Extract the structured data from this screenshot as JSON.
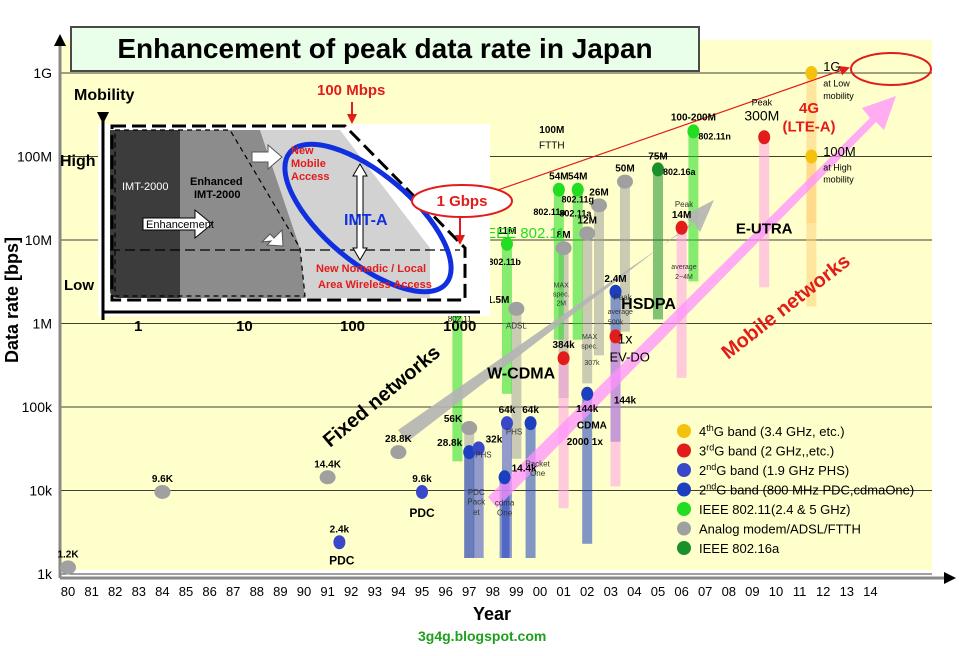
{
  "chart_data": {
    "type": "scatter",
    "title": "Enhancement of peak data rate in Japan",
    "xlabel": "Year",
    "ylabel": "Data rate [bps]",
    "x_ticks": [
      "80",
      "81",
      "82",
      "83",
      "84",
      "85",
      "86",
      "87",
      "88",
      "89",
      "90",
      "91",
      "92",
      "93",
      "94",
      "95",
      "96",
      "97",
      "98",
      "99",
      "00",
      "01",
      "02",
      "03",
      "04",
      "05",
      "06",
      "07",
      "08",
      "09",
      "10",
      "11",
      "12",
      "13",
      "14"
    ],
    "y_ticks": [
      "1k",
      "10k",
      "100k",
      "1M",
      "10M",
      "100M",
      "1G"
    ],
    "y_log10_range": [
      3,
      9
    ],
    "colors": {
      "4g": "#f4c20d",
      "3g": "#e21b1b",
      "2g_19": "#3848c8",
      "2g_800": "#1c3fbf",
      "wlan": "#22dd22",
      "fixed": "#a0a0a0",
      "wimax": "#1a8f2a",
      "plot_bg": "#ffffcc",
      "title_bg": "#eaffea",
      "arrow_fixed": "#b4b4b4",
      "arrow_mobile": "#ff90ff",
      "callout": "#e21b1b"
    },
    "points": [
      {
        "x": 1980,
        "rate": 1200,
        "cat": "fixed",
        "label": "1.2K",
        "lpos": "above"
      },
      {
        "x": 1984,
        "rate": 9600,
        "cat": "fixed",
        "label": "9.6K",
        "lpos": "above"
      },
      {
        "x": 1991,
        "rate": 14400,
        "cat": "fixed",
        "label": "14.4K",
        "lpos": "above"
      },
      {
        "x": 1994,
        "rate": 28800,
        "cat": "fixed",
        "label": "28.8K",
        "lpos": "above"
      },
      {
        "x": 1997,
        "rate": 56000,
        "cat": "fixed",
        "label": "56K",
        "lpos": "left"
      },
      {
        "x": 1999,
        "rate": 1500000,
        "cat": "fixed",
        "label": "1.5M",
        "lpos": "left"
      },
      {
        "x": 2001,
        "rate": 8000000,
        "cat": "fixed",
        "label": "8M",
        "lpos": "above"
      },
      {
        "x": 2002,
        "rate": 12000000,
        "cat": "fixed",
        "label": "12M",
        "lpos": "above"
      },
      {
        "x": 2002.5,
        "rate": 26000000,
        "cat": "fixed",
        "label": "26M",
        "lpos": "above"
      },
      {
        "x": 2003.6,
        "rate": 50000000,
        "cat": "fixed",
        "label": "50M",
        "lpos": "above"
      },
      {
        "x": 1991.5,
        "rate": 2400,
        "cat": "2g_19",
        "label": "2.4k",
        "lpos": "above"
      },
      {
        "x": 1995,
        "rate": 9600,
        "cat": "2g_19",
        "label": "9.6k",
        "lpos": "above"
      },
      {
        "x": 1997,
        "rate": 28800,
        "cat": "2g_800",
        "label": "28.8k",
        "lpos": "left"
      },
      {
        "x": 1997.4,
        "rate": 32000,
        "cat": "2g_19",
        "label": "32k",
        "lpos": "right"
      },
      {
        "x": 1998.6,
        "rate": 64000,
        "cat": "2g_19",
        "label": "64k",
        "lpos": "above"
      },
      {
        "x": 1999.6,
        "rate": 64000,
        "cat": "2g_800",
        "label": "64k",
        "lpos": "above"
      },
      {
        "x": 1998.5,
        "rate": 14400,
        "cat": "2g_800",
        "label": "14.4k",
        "lpos": "right"
      },
      {
        "x": 2002,
        "rate": 144000,
        "cat": "2g_800",
        "label": "144k",
        "lpos": "below"
      },
      {
        "x": 2003.2,
        "rate": 2400000,
        "cat": "2g_800",
        "label": "2.4M",
        "lpos": "above"
      },
      {
        "x": 2001,
        "rate": 384000,
        "cat": "3g",
        "label": "384k",
        "lpos": "above"
      },
      {
        "x": 2003.2,
        "rate": 700000,
        "cat": "3g",
        "label": "",
        "lpos": "none"
      },
      {
        "x": 2006,
        "rate": 14000000,
        "cat": "3g",
        "label": "14M",
        "lpos": "above"
      },
      {
        "x": 2009.5,
        "rate": 170000000,
        "cat": "3g",
        "label": "",
        "lpos": "none"
      },
      {
        "x": 2011.5,
        "rate": 1000000000,
        "cat": "4g",
        "label": "",
        "lpos": "none"
      },
      {
        "x": 2011.5,
        "rate": 100000000,
        "cat": "4g",
        "label": "",
        "lpos": "none"
      },
      {
        "x": 1996.5,
        "rate": 1400000,
        "cat": "wlan",
        "label": "2M",
        "lpos": "above"
      },
      {
        "x": 1998.6,
        "rate": 9000000,
        "cat": "wlan",
        "label": "11M",
        "lpos": "above"
      },
      {
        "x": 2000.8,
        "rate": 40000000,
        "cat": "wlan",
        "label": "54M",
        "lpos": "above"
      },
      {
        "x": 2001.6,
        "rate": 40000000,
        "cat": "wlan",
        "label": "54M",
        "lpos": "above"
      },
      {
        "x": 2006.5,
        "rate": 200000000,
        "cat": "wlan",
        "label": "",
        "lpos": "none"
      },
      {
        "x": 2005,
        "rate": 70000000,
        "cat": "wimax",
        "label": "75M",
        "lpos": "above"
      }
    ],
    "labels": [
      {
        "x": 2000.5,
        "rate": 190000000,
        "text": "100M",
        "size": 10,
        "bold": true,
        "color": "#000"
      },
      {
        "x": 2000.5,
        "rate": 125000000,
        "text": "FTTH",
        "size": 10,
        "bold": false,
        "color": "#000"
      },
      {
        "x": 2000.4,
        "rate": 20000000,
        "text": "802.11a",
        "size": 9,
        "bold": true,
        "color": "#000"
      },
      {
        "x": 2001.6,
        "rate": 28000000,
        "text": "802.11g",
        "size": 9,
        "bold": true,
        "color": "#000"
      },
      {
        "x": 2001.5,
        "rate": 19000000,
        "text": "802.11a",
        "size": 9,
        "bold": true,
        "color": "#000"
      },
      {
        "x": 1998.5,
        "rate": 5000000,
        "text": "802.11b",
        "size": 9,
        "bold": true,
        "color": "#000"
      },
      {
        "x": 1996.6,
        "rate": 1050000,
        "text": "802.11",
        "size": 8,
        "bold": false,
        "color": "#000"
      },
      {
        "x": 1999.0,
        "rate": 870000,
        "text": "ADSL",
        "size": 8,
        "bold": false,
        "color": "#333"
      },
      {
        "x": 2000.9,
        "rate": 2700000,
        "text": "MAX",
        "size": 7,
        "bold": false,
        "color": "#333"
      },
      {
        "x": 2000.9,
        "rate": 2100000,
        "text": "spec.",
        "size": 7,
        "bold": false,
        "color": "#333"
      },
      {
        "x": 2000.9,
        "rate": 1650000,
        "text": "2M",
        "size": 7,
        "bold": false,
        "color": "#333"
      },
      {
        "x": 2002.1,
        "rate": 650000,
        "text": "MAX",
        "size": 7,
        "bold": false,
        "color": "#333"
      },
      {
        "x": 2002.1,
        "rate": 500000,
        "text": "spec.",
        "size": 7,
        "bold": false,
        "color": "#333"
      },
      {
        "x": 2002.2,
        "rate": 320000,
        "text": "307k",
        "size": 7,
        "bold": false,
        "color": "#333"
      },
      {
        "x": 2003.4,
        "rate": 1300000,
        "text": "average",
        "size": 7,
        "bold": false,
        "color": "#333"
      },
      {
        "x": 2003.2,
        "rate": 970000,
        "text": "500k",
        "size": 7,
        "bold": false,
        "color": "#333"
      },
      {
        "x": 2003.5,
        "rate": 5000000,
        "text": "",
        "size": 7,
        "bold": false,
        "color": "#333"
      },
      {
        "x": 2006.1,
        "rate": 4500000,
        "text": "average",
        "size": 7,
        "bold": false,
        "color": "#333"
      },
      {
        "x": 2006.1,
        "rate": 3400000,
        "text": "2~4M",
        "size": 7,
        "bold": false,
        "color": "#333"
      },
      {
        "x": 2006.1,
        "rate": 25000000,
        "text": "Peak",
        "size": 8,
        "bold": false,
        "color": "#333"
      },
      {
        "x": 2003.5,
        "rate": 1900000,
        "text": "Peak",
        "size": 8,
        "bold": false,
        "color": "#333"
      },
      {
        "x": 2006.5,
        "rate": 270000000,
        "text": "100-200M",
        "size": 10,
        "bold": true,
        "color": "#000"
      },
      {
        "x": 2007.4,
        "rate": 160000000,
        "text": "802.11n",
        "size": 9,
        "bold": true,
        "color": "#000"
      },
      {
        "x": 2005.9,
        "rate": 60000000,
        "text": "802.16a",
        "size": 9,
        "bold": true,
        "color": "#000"
      },
      {
        "x": 2009.4,
        "rate": 410000000,
        "text": "Peak",
        "size": 9,
        "bold": false,
        "color": "#000"
      },
      {
        "x": 2009.4,
        "rate": 270000000,
        "text": "300M",
        "size": 14,
        "bold": false,
        "color": "#000"
      },
      {
        "x": 2009.5,
        "rate": 12000000,
        "text": "E-UTRA",
        "size": 15,
        "bold": true,
        "color": "#000"
      },
      {
        "x": 2004.6,
        "rate": 1500000,
        "text": "HSDPA",
        "size": 16,
        "bold": true,
        "color": "#000"
      },
      {
        "x": 2003.6,
        "rate": 580000,
        "text": "1x",
        "size": 14,
        "bold": false,
        "color": "#000"
      },
      {
        "x": 2003.8,
        "rate": 350000,
        "text": "EV-DO",
        "size": 13,
        "bold": false,
        "color": "#000"
      },
      {
        "x": 1999.2,
        "rate": 220000,
        "text": "W-CDMA",
        "size": 16,
        "bold": true,
        "color": "#000"
      },
      {
        "x": 2002.2,
        "rate": 55000,
        "text": "CDMA",
        "size": 10,
        "bold": true,
        "color": "#000"
      },
      {
        "x": 2001.9,
        "rate": 35000,
        "text": "2000 1x",
        "size": 10,
        "bold": true,
        "color": "#000"
      },
      {
        "x": 2003.6,
        "rate": 110000,
        "text": "144k",
        "size": 10,
        "bold": true,
        "color": "#000"
      },
      {
        "x": 1997.3,
        "rate": 8800,
        "text": "PDC",
        "size": 8,
        "bold": false,
        "color": "#333"
      },
      {
        "x": 1997.3,
        "rate": 6800,
        "text": "Pack",
        "size": 8,
        "bold": false,
        "color": "#333"
      },
      {
        "x": 1997.3,
        "rate": 5100,
        "text": "et",
        "size": 8,
        "bold": false,
        "color": "#333"
      },
      {
        "x": 1998.5,
        "rate": 6600,
        "text": "cdma",
        "size": 8,
        "bold": false,
        "color": "#333"
      },
      {
        "x": 1998.5,
        "rate": 5000,
        "text": "One",
        "size": 8,
        "bold": false,
        "color": "#333"
      },
      {
        "x": 1999.9,
        "rate": 19500,
        "text": "Packet",
        "size": 8,
        "bold": false,
        "color": "#333"
      },
      {
        "x": 1999.9,
        "rate": 15000,
        "text": "One",
        "size": 8,
        "bold": false,
        "color": "#333"
      },
      {
        "x": 1997.6,
        "rate": 25000,
        "text": "PHS",
        "size": 8,
        "bold": false,
        "color": "#333"
      },
      {
        "x": 1998.9,
        "rate": 47000,
        "text": "PHS",
        "size": 8,
        "bold": false,
        "color": "#333"
      },
      {
        "x": 1995,
        "rate": 4800,
        "text": "PDC",
        "size": 12,
        "bold": true,
        "color": "#000"
      },
      {
        "x": 1991.6,
        "rate": 1300,
        "text": "PDC",
        "size": 12,
        "bold": true,
        "color": "#000"
      },
      {
        "x": 1999.3,
        "rate": 10500000,
        "text": "IEEE 802.11",
        "size": 15,
        "bold": false,
        "color": "#22dd22"
      },
      {
        "x": 2011.4,
        "rate": 330000000,
        "text": "4G",
        "size": 15,
        "bold": true,
        "color": "#e21b1b"
      },
      {
        "x": 2011.4,
        "rate": 200000000,
        "text": "(LTE-A)",
        "size": 15,
        "bold": true,
        "color": "#e21b1b"
      }
    ],
    "side_notes": [
      {
        "x": 2012.0,
        "rate": 1050000000,
        "text": "1G",
        "size": 13,
        "bold": false,
        "color": "#000"
      },
      {
        "x": 2012.0,
        "rate": 690000000,
        "text": "at Low",
        "size": 9,
        "bold": false,
        "color": "#000"
      },
      {
        "x": 2012.0,
        "rate": 490000000,
        "text": "mobility",
        "size": 9,
        "bold": false,
        "color": "#000"
      },
      {
        "x": 2012.0,
        "rate": 102000000,
        "text": "100M",
        "size": 13,
        "bold": false,
        "color": "#000"
      },
      {
        "x": 2012.0,
        "rate": 68000000,
        "text": "at High",
        "size": 9,
        "bold": false,
        "color": "#000"
      },
      {
        "x": 2012.0,
        "rate": 49000000,
        "text": "mobility",
        "size": 9,
        "bold": false,
        "color": "#000"
      }
    ],
    "legend": [
      {
        "color": "#f4c20d",
        "sup": "th",
        "pre": "4",
        "post": "G band (3.4 GHz, etc.)"
      },
      {
        "color": "#e21b1b",
        "sup": "rd",
        "pre": "3",
        "post": "G band (2 GHz,,etc.)"
      },
      {
        "color": "#3848c8",
        "sup": "nd",
        "pre": "2",
        "post": "G band (1.9 GHz PHS)"
      },
      {
        "color": "#1c3fbf",
        "sup": "nd",
        "pre": "2",
        "post": "G band (800 MHz PDC,cdmaOne)"
      },
      {
        "color": "#22dd22",
        "sup": "",
        "pre": "",
        "post": "IEEE 802.11(2.4 & 5 GHz)"
      },
      {
        "color": "#a0a0a0",
        "sup": "",
        "pre": "",
        "post": "Analog modem/ADSL/FTTH"
      },
      {
        "color": "#1a8f2a",
        "sup": "",
        "pre": "",
        "post": "IEEE 802.16a"
      }
    ],
    "arrows": {
      "fixed_label": "Fixed networks",
      "mobile_label": "Mobile networks"
    },
    "callouts": {
      "c100": "100 Mbps",
      "c1g": "1 Gbps"
    },
    "inset": {
      "mobility": "Mobility",
      "high": "High",
      "low": "Low",
      "imt2000": "IMT-2000",
      "enhanced1": "Enhanced",
      "enhanced2": "IMT-2000",
      "enhancement": "Enhancement",
      "newmobile1": "New",
      "newmobile2": "Mobile",
      "newmobile3": "Access",
      "imta": "IMT-A",
      "nomadic1": "New Nomadic / Local",
      "nomadic2": "Area Wireless Access",
      "x_ticks": [
        "1",
        "10",
        "100",
        "1000"
      ]
    }
  },
  "page": {
    "title": "Enhancement of peak data rate in Japan",
    "credit": "3g4g.blogspot.com"
  }
}
